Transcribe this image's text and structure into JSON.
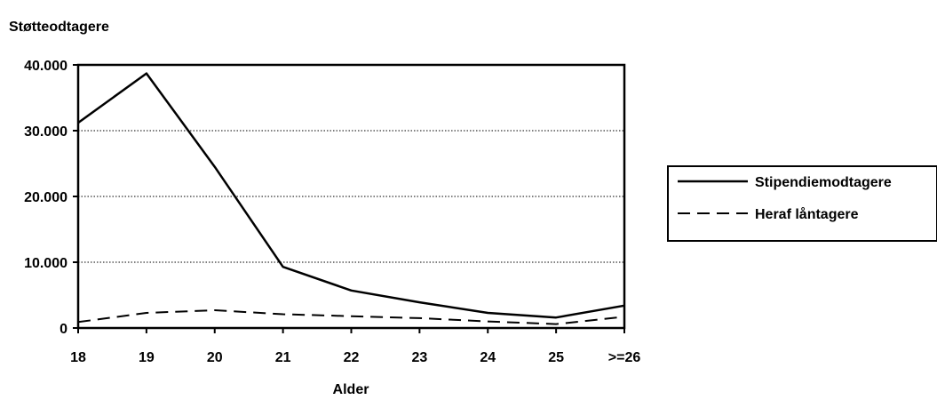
{
  "chart_data": {
    "type": "line",
    "title": "",
    "ylabel": "Støtteodtagere",
    "xlabel": "Alder",
    "categories": [
      "18",
      "19",
      "20",
      "21",
      "22",
      "23",
      "24",
      "25",
      ">=26"
    ],
    "yticks": [
      "0",
      "10.000",
      "20.000",
      "30.000",
      "40.000"
    ],
    "ylim": [
      0,
      40000
    ],
    "grid": "horizontal dotted",
    "legend_position": "right",
    "series": [
      {
        "name": "Stipendiemodtagere",
        "style": "solid",
        "color": "#000000",
        "values": [
          31200,
          38700,
          24500,
          9300,
          5700,
          3900,
          2300,
          1600,
          3400
        ]
      },
      {
        "name": "Heraf låntagere",
        "style": "dashed",
        "color": "#000000",
        "values": [
          900,
          2300,
          2700,
          2100,
          1800,
          1500,
          1000,
          600,
          1700
        ]
      }
    ]
  }
}
